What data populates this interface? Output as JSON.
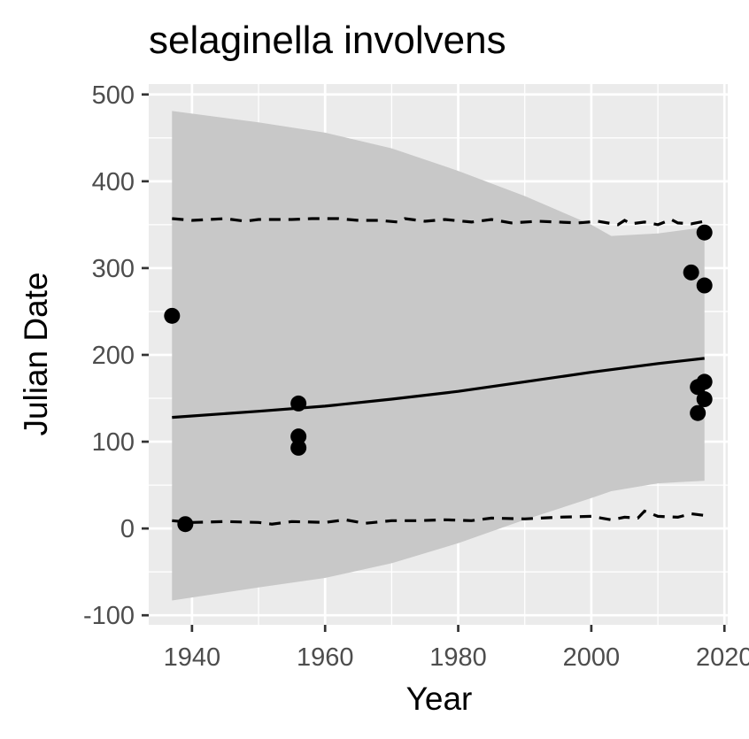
{
  "chart_data": {
    "type": "scatter",
    "title": "selaginella involvens",
    "xlabel": "Year",
    "ylabel": "Julian Date",
    "xlim": [
      1933.5,
      2020.5
    ],
    "ylim": [
      -111,
      512
    ],
    "x_ticks": [
      1940,
      1960,
      1980,
      2000,
      2020
    ],
    "y_ticks": [
      -100,
      0,
      100,
      200,
      300,
      400,
      500
    ],
    "x_tick_labels": [
      "1940",
      "1960",
      "1980",
      "2000",
      "2020"
    ],
    "y_tick_labels": [
      "-100",
      "0",
      "100",
      "200",
      "300",
      "400",
      "500"
    ],
    "grid": true,
    "background": "#ebebeb",
    "ribbon_color": "#c8c8c8",
    "points": [
      {
        "x": 1937,
        "y": 245
      },
      {
        "x": 1939,
        "y": 5
      },
      {
        "x": 1956,
        "y": 144
      },
      {
        "x": 1956,
        "y": 106
      },
      {
        "x": 1956,
        "y": 93
      },
      {
        "x": 2015,
        "y": 295
      },
      {
        "x": 2016,
        "y": 163
      },
      {
        "x": 2016,
        "y": 133
      },
      {
        "x": 2017,
        "y": 341
      },
      {
        "x": 2017,
        "y": 280
      },
      {
        "x": 2017,
        "y": 169
      },
      {
        "x": 2017,
        "y": 149
      }
    ],
    "fit_line": {
      "x": [
        1937,
        1950,
        1960,
        1970,
        1980,
        1990,
        2000,
        2010,
        2017
      ],
      "y": [
        128,
        135,
        141,
        149,
        158,
        169,
        180,
        190,
        196
      ]
    },
    "ribbon": {
      "x": [
        1937,
        1950,
        1960,
        1970,
        1980,
        1990,
        2000,
        2003,
        2010,
        2017
      ],
      "upper": [
        481,
        468,
        456,
        438,
        412,
        383,
        350,
        337,
        340,
        347
      ],
      "lower": [
        -83,
        -68,
        -57,
        -40,
        -17,
        10,
        35,
        43,
        52,
        55
      ]
    },
    "upper_dashed": {
      "x": [
        1937,
        1940,
        1945,
        1948,
        1950,
        1955,
        1958,
        1962,
        1965,
        1968,
        1971,
        1972,
        1975,
        1978,
        1982,
        1985,
        1988,
        1992,
        1995,
        1998,
        2001,
        2004,
        2005,
        2006,
        2008,
        2010,
        2012,
        2013,
        2015,
        2017
      ],
      "y": [
        357,
        355,
        357,
        354,
        356,
        356,
        357,
        357,
        355,
        355,
        353,
        357,
        354,
        356,
        353,
        356,
        352,
        354,
        353,
        352,
        354,
        350,
        355,
        351,
        353,
        350,
        356,
        352,
        351,
        354
      ]
    },
    "lower_dashed": {
      "x": [
        1937,
        1940,
        1945,
        1950,
        1952,
        1955,
        1960,
        1963,
        1966,
        1970,
        1974,
        1978,
        1982,
        1985,
        1990,
        1995,
        2000,
        2003,
        2005,
        2007,
        2008,
        2010,
        2013,
        2015,
        2017
      ],
      "y": [
        9,
        7,
        8,
        7,
        5,
        8,
        7,
        10,
        6,
        9,
        9,
        10,
        9,
        12,
        11,
        13,
        14,
        10,
        13,
        12,
        20,
        14,
        13,
        17,
        15
      ]
    }
  }
}
